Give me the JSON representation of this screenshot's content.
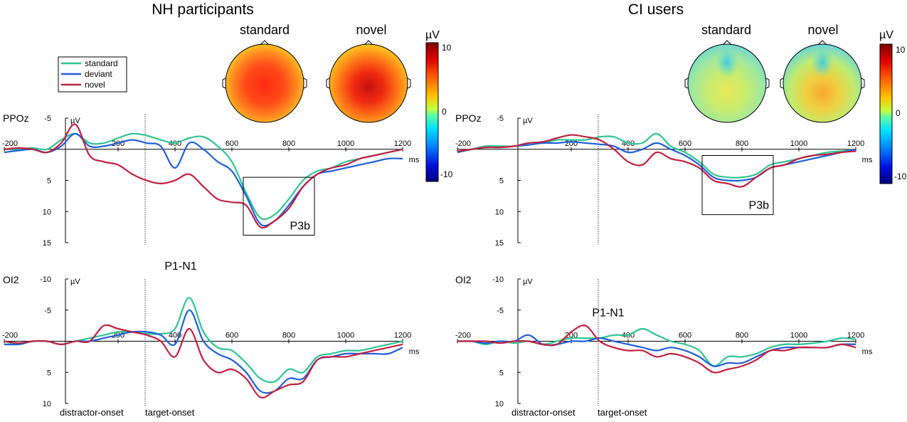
{
  "figure": {
    "groups": [
      {
        "id": "nh",
        "title": "NH participants"
      },
      {
        "id": "ci",
        "title": "CI users"
      }
    ],
    "topo_titles": {
      "standard": "standard",
      "novel": "novel"
    },
    "colorbar": {
      "unit": "µV",
      "ticks": [
        "10",
        "0",
        "-10"
      ],
      "range": [
        -10,
        10
      ],
      "colors": [
        "#000080",
        "#0040ff",
        "#00c0ff",
        "#40e0d0",
        "#80ff80",
        "#e0ff40",
        "#ffd000",
        "#ff8000",
        "#ff2000",
        "#800000"
      ]
    },
    "legend": [
      {
        "label": "standard",
        "color": "#2ec492"
      },
      {
        "label": "deviant",
        "color": "#1f5fd6"
      },
      {
        "label": "novel",
        "color": "#c0203f"
      }
    ],
    "time_unit": "ms",
    "amp_unit": "µV",
    "onset_labels": {
      "distractor": "distractor-onset",
      "target": "target-onset"
    }
  },
  "chart_data": [
    {
      "id": "nh-ppoz",
      "type": "line",
      "group": "NH participants",
      "channel": "PPOz",
      "xlim": [
        -200,
        1200
      ],
      "ylim": [
        -5,
        15
      ],
      "y_inverted": true,
      "xticks": [
        -200,
        200,
        400,
        600,
        800,
        1000,
        1200
      ],
      "yticks": [
        -5,
        5,
        10,
        15
      ],
      "target_onset": 280,
      "annotation": {
        "label": "P3b",
        "box_x": [
          640,
          890
        ],
        "box_y": [
          4.5,
          13.8
        ]
      },
      "x": [
        -200,
        -150,
        -100,
        -50,
        0,
        50,
        100,
        150,
        200,
        250,
        300,
        350,
        400,
        450,
        500,
        550,
        600,
        650,
        700,
        750,
        800,
        850,
        900,
        950,
        1000,
        1050,
        1100,
        1150,
        1200
      ],
      "series": [
        {
          "name": "standard",
          "values": [
            0,
            0,
            -0.2,
            0,
            -1.5,
            -2.5,
            -1,
            -1,
            -1.8,
            -2.5,
            -2.2,
            -1.5,
            -1,
            -1.8,
            -2,
            -0.5,
            2,
            7,
            11,
            10.5,
            8,
            5,
            3.5,
            3,
            2,
            1.5,
            1,
            0.5,
            0
          ]
        },
        {
          "name": "deviant",
          "values": [
            0.5,
            0.2,
            0,
            0.5,
            -0.5,
            -2.5,
            -0.5,
            -0.5,
            -1,
            -1.5,
            -1,
            -0.5,
            3,
            -1,
            0,
            2,
            3.5,
            7.5,
            12,
            11.5,
            9,
            6,
            4,
            3.5,
            3,
            2.5,
            2,
            1.5,
            1.5
          ]
        },
        {
          "name": "novel",
          "values": [
            0,
            -0.2,
            0,
            0.5,
            -1,
            -4,
            1,
            2,
            2.5,
            4,
            5,
            5.5,
            5,
            4,
            6,
            8,
            8.5,
            9,
            12.5,
            11.5,
            9.5,
            6,
            4,
            3,
            2.5,
            1.5,
            1,
            0.5,
            0
          ]
        }
      ]
    },
    {
      "id": "nh-oi2",
      "type": "line",
      "group": "NH participants",
      "channel": "OI2",
      "xlim": [
        -200,
        1200
      ],
      "ylim": [
        -10,
        10
      ],
      "y_inverted": true,
      "xticks": [
        -200,
        200,
        400,
        600,
        800,
        1000,
        1200
      ],
      "yticks": [
        -10,
        -5,
        5,
        10
      ],
      "target_onset": 280,
      "annotation": {
        "label": "P1-N1",
        "at_x": 420,
        "at_y": -11.5
      },
      "x": [
        -200,
        -150,
        -100,
        -50,
        0,
        50,
        100,
        150,
        200,
        250,
        300,
        350,
        400,
        450,
        500,
        550,
        600,
        650,
        700,
        750,
        800,
        850,
        900,
        950,
        1000,
        1050,
        1100,
        1150,
        1200
      ],
      "series": [
        {
          "name": "standard",
          "values": [
            0,
            0.5,
            0,
            0,
            0.5,
            0,
            -0.5,
            -1,
            -1.5,
            -1.5,
            -1.2,
            -1.2,
            -2,
            -7,
            -1.5,
            1,
            1.5,
            3.5,
            6,
            6.5,
            4.5,
            5,
            2.5,
            2,
            1.5,
            1.5,
            1,
            0.5,
            0
          ]
        },
        {
          "name": "deviant",
          "values": [
            0.5,
            0.5,
            0,
            0,
            0.5,
            0,
            0,
            -0.5,
            -1,
            -1.5,
            -1.5,
            -1,
            0.5,
            -5,
            0,
            2,
            3,
            5,
            8,
            8,
            6,
            6,
            3,
            2.5,
            2,
            2,
            2,
            2,
            1
          ]
        },
        {
          "name": "novel",
          "values": [
            0,
            0.3,
            0,
            0,
            0.5,
            0,
            0,
            -2.5,
            -2,
            -1.5,
            -1,
            0,
            2.5,
            -2,
            3,
            5,
            4.5,
            6,
            9,
            8,
            7,
            6.5,
            3,
            2.5,
            2.5,
            2,
            1.5,
            1,
            0.5
          ]
        }
      ]
    },
    {
      "id": "ci-ppoz",
      "type": "line",
      "group": "CI users",
      "channel": "PPOz",
      "xlim": [
        -200,
        1200
      ],
      "ylim": [
        -5,
        15
      ],
      "y_inverted": true,
      "xticks": [
        -200,
        200,
        400,
        600,
        800,
        1000,
        1200
      ],
      "yticks": [
        -5,
        5,
        10,
        15
      ],
      "target_onset": 280,
      "annotation": {
        "label": "P3b",
        "box_x": [
          660,
          910
        ],
        "box_y": [
          1,
          10.5
        ]
      },
      "x": [
        -200,
        -150,
        -100,
        -50,
        0,
        50,
        100,
        150,
        200,
        250,
        300,
        350,
        400,
        450,
        500,
        550,
        600,
        650,
        700,
        750,
        800,
        850,
        900,
        950,
        1000,
        1050,
        1100,
        1150,
        1200
      ],
      "series": [
        {
          "name": "standard",
          "values": [
            0.5,
            0,
            -0.5,
            -0.5,
            -0.5,
            -1,
            -1,
            -1.5,
            -1.5,
            -1.5,
            -2,
            -2,
            -1,
            -1,
            -2.5,
            -0.5,
            0.5,
            2,
            4,
            4.5,
            4.5,
            4,
            2.5,
            2,
            1.5,
            1,
            0.5,
            0.3,
            0
          ]
        },
        {
          "name": "deviant",
          "values": [
            0.5,
            0,
            -0.3,
            -0.3,
            -0.5,
            -0.7,
            -1,
            -1,
            -1.2,
            -1,
            -0.8,
            -0.5,
            0.5,
            0,
            -1,
            0,
            1,
            2.5,
            4.5,
            5,
            5,
            4.5,
            3,
            2.5,
            2,
            1.5,
            1,
            0.5,
            0
          ]
        },
        {
          "name": "novel",
          "values": [
            0.3,
            0,
            -0.3,
            -0.3,
            -0.5,
            -1,
            -1.2,
            -1.8,
            -2.3,
            -2,
            -1.5,
            0,
            2,
            2.5,
            0.5,
            1.5,
            2,
            3,
            5,
            5.5,
            6,
            4.5,
            3,
            2.5,
            1.5,
            1,
            0.8,
            0.5,
            0.3
          ]
        }
      ]
    },
    {
      "id": "ci-oi2",
      "type": "line",
      "group": "CI users",
      "channel": "OI2",
      "xlim": [
        -200,
        1200
      ],
      "ylim": [
        -10,
        10
      ],
      "y_inverted": true,
      "xticks": [
        -200,
        200,
        400,
        600,
        800,
        1000,
        1200
      ],
      "yticks": [
        -10,
        -5,
        5,
        10
      ],
      "target_onset": 280,
      "annotation": {
        "label": "P1-N1",
        "at_x": 330,
        "at_y": -4
      },
      "x": [
        -200,
        -150,
        -100,
        -50,
        0,
        50,
        100,
        150,
        200,
        250,
        300,
        350,
        400,
        450,
        500,
        550,
        600,
        650,
        700,
        750,
        800,
        850,
        900,
        950,
        1000,
        1050,
        1100,
        1150,
        1200
      ],
      "series": [
        {
          "name": "standard",
          "values": [
            0,
            0,
            0.5,
            0,
            0.3,
            0,
            0.5,
            0,
            -0.5,
            -0.5,
            -0.5,
            -1,
            -1,
            -2,
            -1,
            0,
            0.5,
            1.5,
            4,
            2.5,
            2.5,
            2,
            1,
            0.5,
            0.5,
            0.3,
            0,
            -0.5,
            -0.3
          ]
        },
        {
          "name": "deviant",
          "values": [
            0,
            0,
            0.3,
            0,
            0,
            -1,
            0.5,
            0.5,
            0,
            0,
            -0.5,
            0,
            0.5,
            1,
            1.5,
            1,
            1.5,
            2.5,
            4,
            3.5,
            3.5,
            2.5,
            1.5,
            1,
            1,
            1,
            1,
            0.5,
            0.5
          ]
        },
        {
          "name": "novel",
          "values": [
            0,
            0,
            0,
            0.3,
            0,
            0,
            0.5,
            0.5,
            -1.5,
            -2.5,
            0,
            1,
            1.5,
            1.5,
            2.5,
            2,
            2.5,
            3.5,
            5,
            4.5,
            4,
            3,
            1.5,
            1.5,
            1,
            1,
            1,
            0.5,
            1
          ]
        }
      ]
    }
  ]
}
